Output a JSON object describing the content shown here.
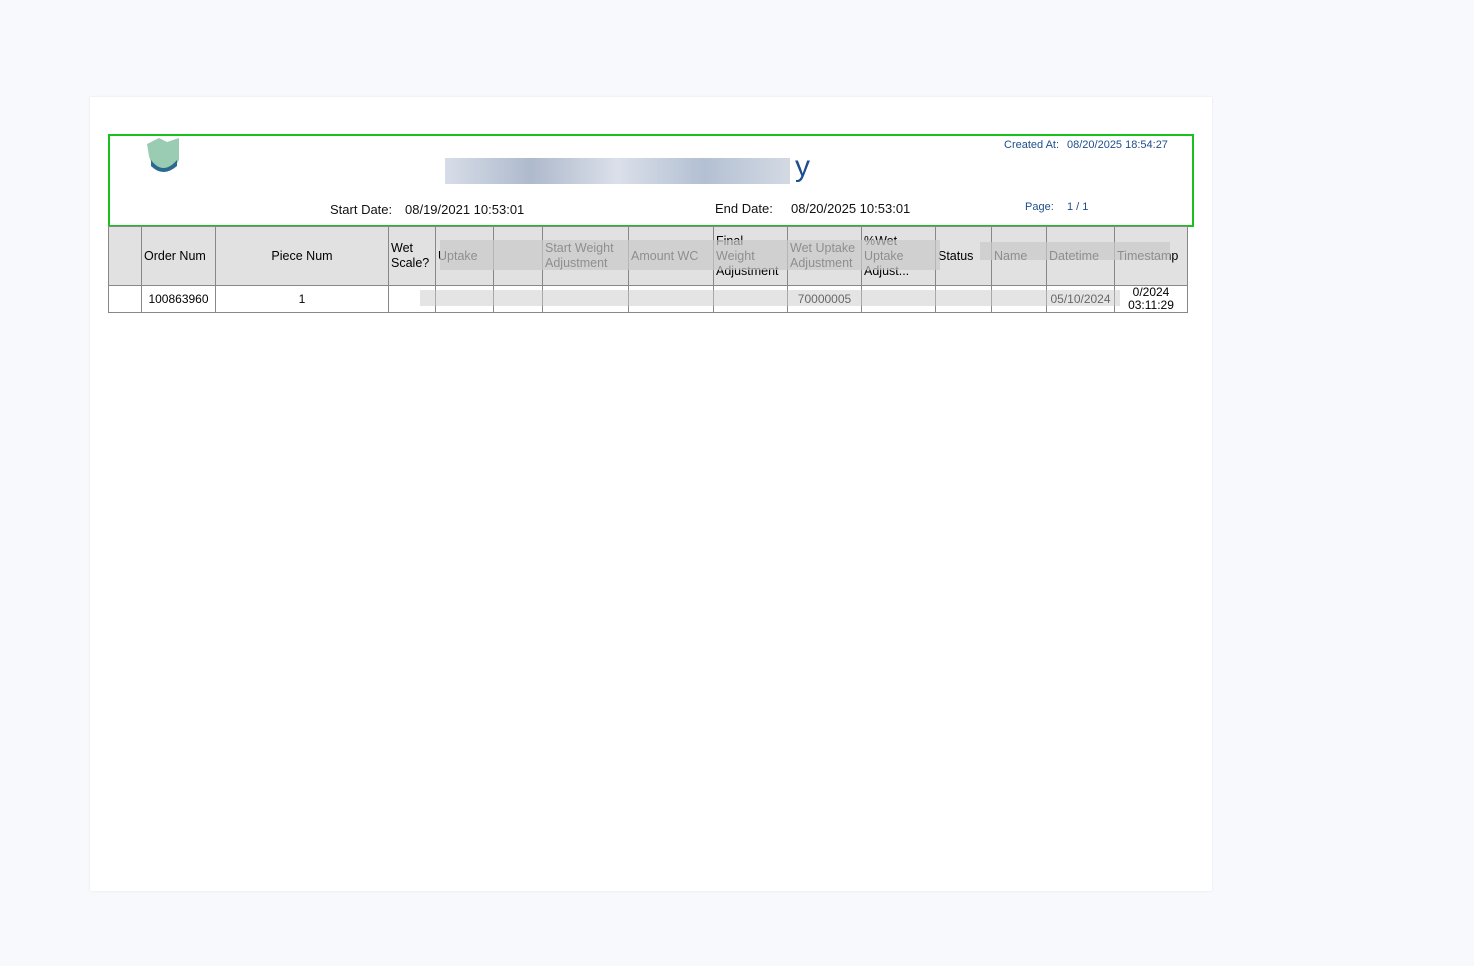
{
  "header": {
    "title_visible_fragment": "y",
    "created_label": "Created At:",
    "created_value": "08/20/2025 18:54:27",
    "start_label": "Start Date:",
    "start_value": "08/19/2021 10:53:01",
    "end_label": "End Date:",
    "end_value": "08/20/2025 10:53:01",
    "page_label": "Page:",
    "page_value": "1 / 1"
  },
  "colors": {
    "highlight": "#17c21c",
    "title": "#1f4e8c"
  },
  "table": {
    "columns": [
      "",
      "Order Num",
      "Piece Num",
      "Wet Scale?",
      "Uptake",
      "",
      "Start Weight Adjustment",
      "Amount WC",
      "Final Weight Adjustment",
      "Wet Uptake Adjustment",
      "%Wet Uptake Adjust...",
      "Status",
      "Name",
      "Datetime",
      "Timestamp"
    ],
    "rows": [
      [
        "",
        "100863960",
        "1",
        "",
        "",
        "",
        "",
        "",
        "",
        "70000005",
        "",
        "",
        "",
        "05/10/2024",
        "0/2024 03:11:29"
      ]
    ]
  }
}
